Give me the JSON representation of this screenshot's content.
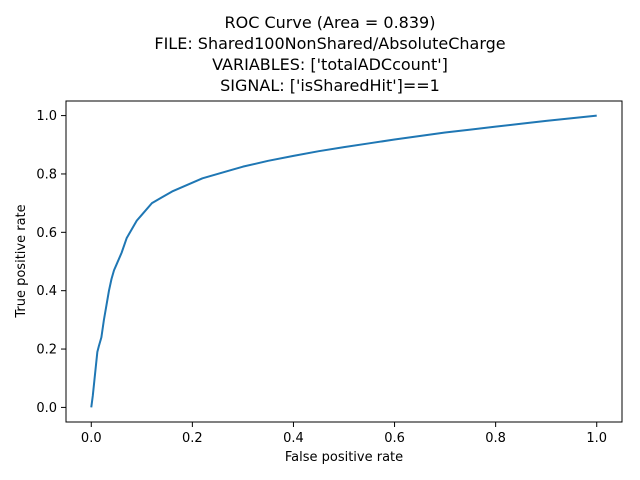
{
  "chart_data": {
    "type": "line",
    "title_lines": [
      "ROC Curve (Area = 0.839)",
      "FILE: Shared100NonShared/AbsoluteCharge",
      "VARIABLES: ['totalADCcount']",
      "SIGNAL: ['isSharedHit']==1"
    ],
    "xlabel": "False positive rate",
    "ylabel": "True positive rate",
    "xlim": [
      -0.05,
      1.05
    ],
    "ylim": [
      -0.05,
      1.05
    ],
    "xticks": [
      0.0,
      0.2,
      0.4,
      0.6,
      0.8,
      1.0
    ],
    "yticks": [
      0.0,
      0.2,
      0.4,
      0.6,
      0.8,
      1.0
    ],
    "xtick_labels": [
      "0.0",
      "0.2",
      "0.4",
      "0.6",
      "0.8",
      "1.0"
    ],
    "ytick_labels": [
      "0.0",
      "0.2",
      "0.4",
      "0.6",
      "0.8",
      "1.0"
    ],
    "grid": false,
    "legend": "none",
    "series": [
      {
        "color": "#1f77b4",
        "x": [
          0.0,
          0.003,
          0.006,
          0.009,
          0.012,
          0.015,
          0.02,
          0.025,
          0.03,
          0.035,
          0.04,
          0.045,
          0.05,
          0.06,
          0.07,
          0.08,
          0.09,
          0.1,
          0.12,
          0.14,
          0.16,
          0.18,
          0.2,
          0.22,
          0.25,
          0.28,
          0.3,
          0.35,
          0.4,
          0.45,
          0.5,
          0.55,
          0.6,
          0.65,
          0.7,
          0.75,
          0.8,
          0.85,
          0.9,
          0.95,
          1.0
        ],
        "y": [
          0.0,
          0.04,
          0.09,
          0.14,
          0.19,
          0.21,
          0.24,
          0.3,
          0.35,
          0.4,
          0.44,
          0.47,
          0.49,
          0.53,
          0.58,
          0.61,
          0.64,
          0.66,
          0.7,
          0.72,
          0.74,
          0.755,
          0.77,
          0.785,
          0.8,
          0.815,
          0.825,
          0.845,
          0.862,
          0.878,
          0.892,
          0.905,
          0.918,
          0.93,
          0.942,
          0.952,
          0.962,
          0.972,
          0.982,
          0.991,
          1.0
        ]
      }
    ]
  }
}
